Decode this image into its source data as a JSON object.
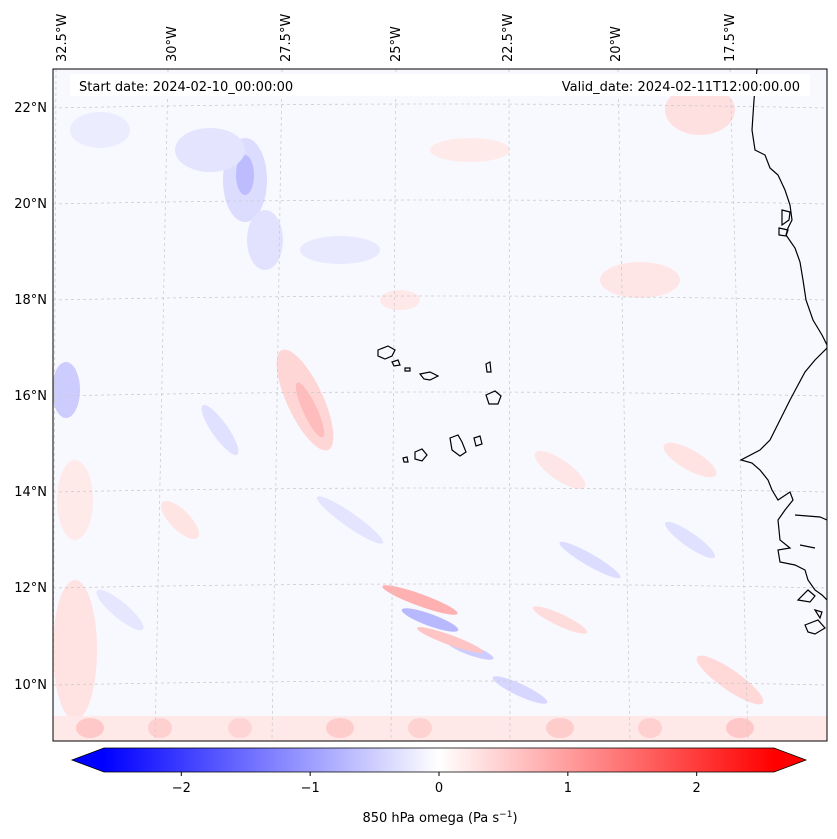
{
  "map": {
    "start_date_text": "Start date: 2024-02-10_00:00:00",
    "valid_date_text": "Valid_date: 2024-02-11T12:00:00.00",
    "lon_labels": [
      "32.5°W",
      "30°W",
      "27.5°W",
      "25°W",
      "22.5°W",
      "20°W",
      "17.5°W"
    ],
    "lat_labels": [
      "22°N",
      "20°N",
      "18°N",
      "16°N",
      "14°N",
      "12°N",
      "10°N"
    ],
    "colorbar": {
      "label": "850 hPa omega (Pa s",
      "label_exp": "−1",
      "label_close": ")",
      "ticks": [
        "−2",
        "−1",
        "0",
        "1",
        "2"
      ],
      "range": [
        -2.6,
        2.6
      ],
      "neg_color": "#0000ff",
      "mid_color": "#ffffff",
      "pos_color": "#ff0000"
    },
    "field_tint": "#f7f7ff",
    "coast_color": "#000000",
    "grid_color": "#cccccc"
  }
}
